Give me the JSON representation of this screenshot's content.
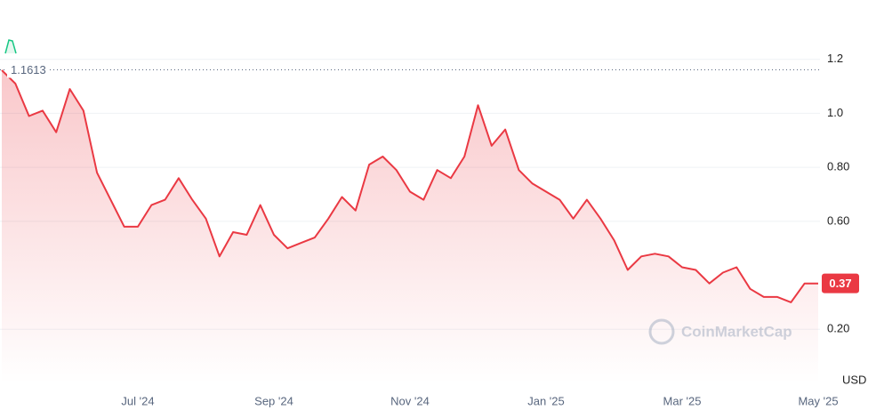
{
  "chart_data": {
    "type": "line",
    "categories": [
      null,
      null,
      null,
      null,
      null,
      null,
      null,
      null,
      null,
      null,
      "Jul '24",
      null,
      null,
      null,
      null,
      null,
      null,
      null,
      null,
      null,
      "Sep '24",
      null,
      null,
      null,
      null,
      null,
      null,
      null,
      null,
      null,
      "Nov '24",
      null,
      null,
      null,
      null,
      null,
      null,
      null,
      null,
      null,
      "Jan '25",
      null,
      null,
      null,
      null,
      null,
      null,
      null,
      null,
      null,
      "Mar '25",
      null,
      null,
      null,
      null,
      null,
      null,
      null,
      null,
      null,
      "May '25"
    ],
    "values": [
      1.16,
      1.11,
      0.99,
      1.01,
      0.93,
      1.09,
      1.01,
      0.78,
      0.68,
      0.58,
      0.58,
      0.66,
      0.68,
      0.76,
      0.68,
      0.61,
      0.47,
      0.56,
      0.55,
      0.66,
      0.55,
      0.5,
      0.52,
      0.54,
      0.61,
      0.69,
      0.64,
      0.81,
      0.84,
      0.79,
      0.71,
      0.68,
      0.79,
      0.76,
      0.84,
      1.03,
      0.88,
      0.94,
      0.79,
      0.74,
      0.71,
      0.68,
      0.61,
      0.68,
      0.61,
      0.53,
      0.42,
      0.47,
      0.48,
      0.47,
      0.43,
      0.42,
      0.37,
      0.41,
      0.43,
      0.35,
      0.32,
      0.32,
      0.3,
      0.37,
      0.37
    ],
    "color": "#ea3943",
    "ylim": [
      0,
      1.4
    ],
    "yticks": [
      {
        "value": 0.2,
        "label": "0.20"
      },
      {
        "value": 0.6,
        "label": "0.60"
      },
      {
        "value": 0.8,
        "label": "0.80"
      },
      {
        "value": 1,
        "label": "1.0"
      },
      1.2
    ],
    "grid": true,
    "reference_line": 1.1613,
    "last_price": 0.37,
    "unit": "USD",
    "watermark": "CoinMarketCap"
  }
}
